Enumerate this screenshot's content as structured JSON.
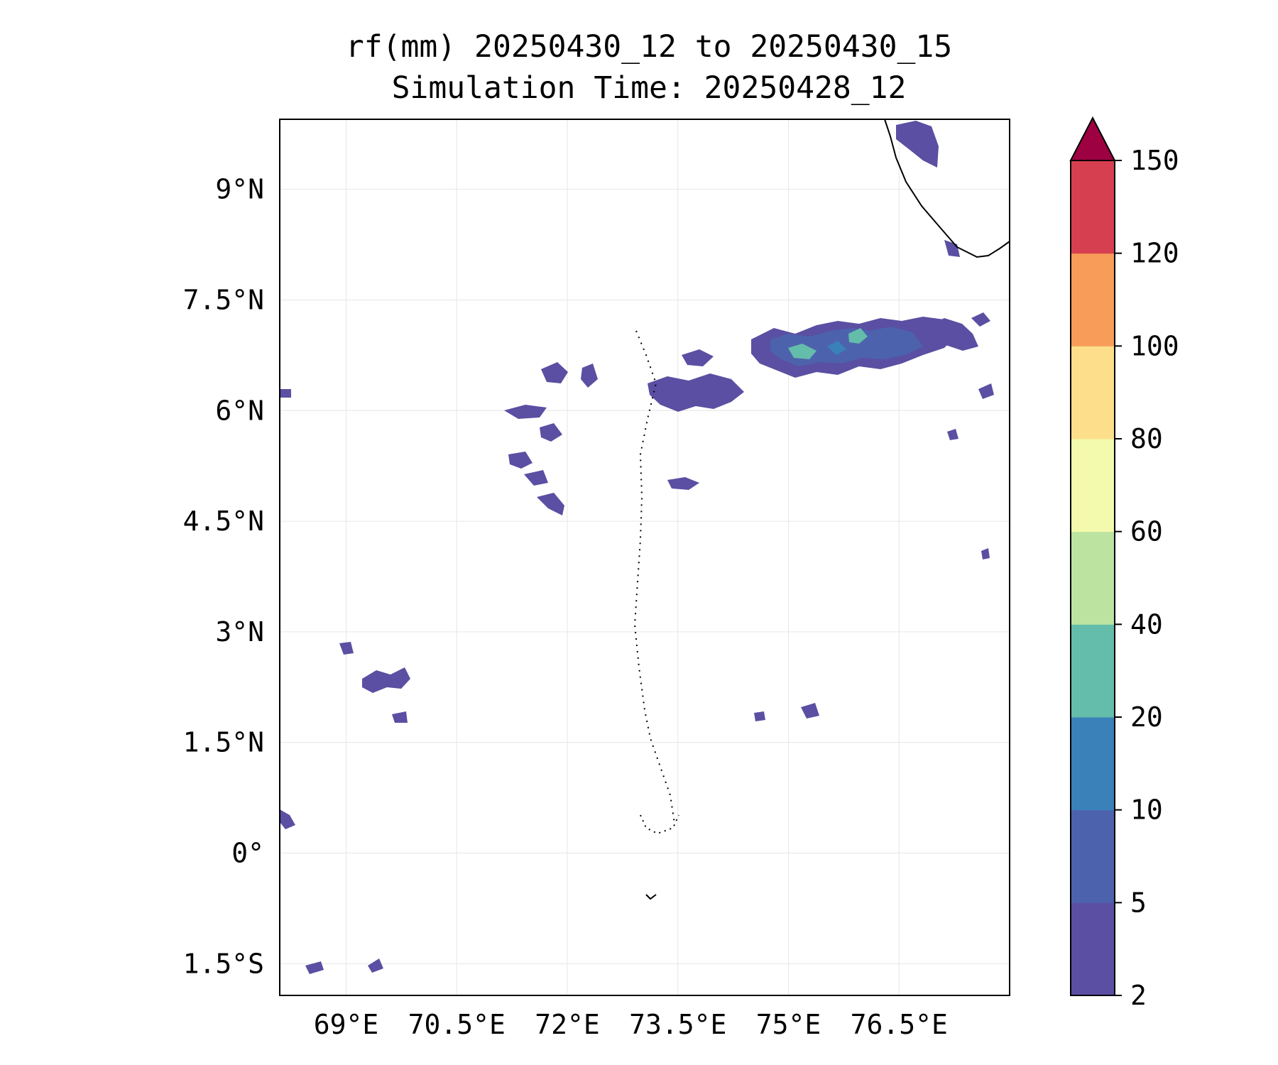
{
  "title": {
    "line1": "rf(mm) 20250430_12 to 20250430_15",
    "line2": "Simulation Time: 20250428_12"
  },
  "map": {
    "extent": {
      "lon_min": 68.1,
      "lon_max": 78.0,
      "lat_min": -1.93,
      "lat_max": 9.95
    },
    "gridlines": true,
    "coastline_color": "#000000"
  },
  "axes": {
    "x_ticks": [
      {
        "value": 69.0,
        "label": "69°E"
      },
      {
        "value": 70.5,
        "label": "70.5°E"
      },
      {
        "value": 72.0,
        "label": "72°E"
      },
      {
        "value": 73.5,
        "label": "73.5°E"
      },
      {
        "value": 75.0,
        "label": "75°E"
      },
      {
        "value": 76.5,
        "label": "76.5°E"
      }
    ],
    "y_ticks": [
      {
        "value": 9.0,
        "label": "9°N"
      },
      {
        "value": 7.5,
        "label": "7.5°N"
      },
      {
        "value": 6.0,
        "label": "6°N"
      },
      {
        "value": 4.5,
        "label": "4.5°N"
      },
      {
        "value": 3.0,
        "label": "3°N"
      },
      {
        "value": 1.5,
        "label": "1.5°N"
      },
      {
        "value": 0.0,
        "label": "0°"
      },
      {
        "value": -1.5,
        "label": "1.5°S"
      }
    ]
  },
  "colorbar": {
    "levels": [
      "2",
      "5",
      "10",
      "20",
      "40",
      "60",
      "80",
      "100",
      "120",
      "150"
    ],
    "colors": [
      "#5a4fa2",
      "#4d62ad",
      "#3a80b9",
      "#63bdaa",
      "#bde3a0",
      "#f3faad",
      "#fddf8b",
      "#f89c59",
      "#d63f4f"
    ],
    "extend_color": "#9e0142",
    "extend": "max"
  },
  "legend_colors": {
    "light_rain": "#5a4fa2",
    "moderate_rain": "#4d62ad",
    "heavy_rain": "#63bdaa"
  }
}
